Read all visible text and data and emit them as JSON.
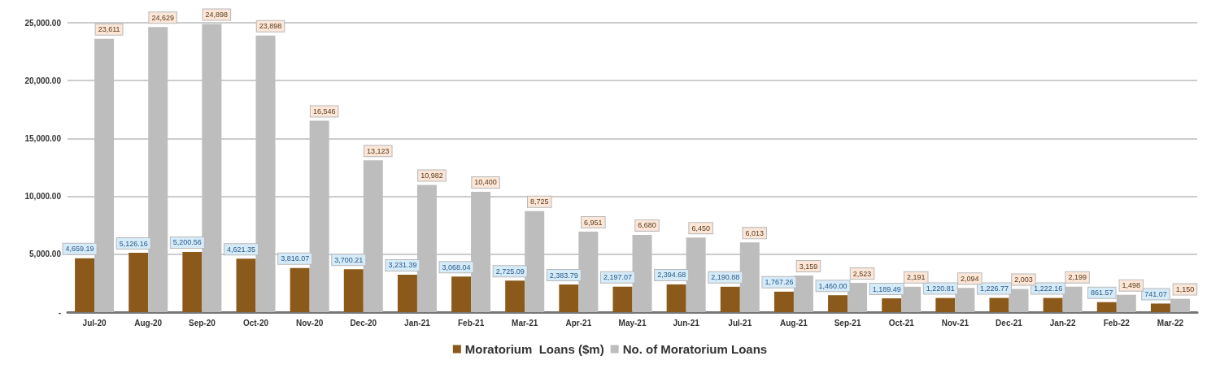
{
  "chart_data": {
    "type": "bar",
    "categories": [
      "Jul-20",
      "Aug-20",
      "Sep-20",
      "Oct-20",
      "Nov-20",
      "Dec-20",
      "Jan-21",
      "Feb-21",
      "Mar-21",
      "Apr-21",
      "May-21",
      "Jun-21",
      "Jul-21",
      "Aug-21",
      "Sep-21",
      "Oct-21",
      "Nov-21",
      "Dec-21",
      "Jan-22",
      "Feb-22",
      "Mar-22"
    ],
    "series": [
      {
        "name": "Moratorium  Loans ($m)",
        "color": "#8b5a1a",
        "values": [
          4659.19,
          5126.16,
          5200.56,
          4621.35,
          3816.07,
          3700.21,
          3231.39,
          3068.04,
          2725.09,
          2383.79,
          2197.07,
          2394.68,
          2190.88,
          1767.26,
          1460.0,
          1189.49,
          1220.81,
          1226.77,
          1222.16,
          861.57,
          741.07
        ],
        "value_labels": [
          "4,659.19",
          "5,126.16",
          "5,200.56",
          "4,621.35",
          "3,816.07",
          "3,700.21",
          "3,231.39",
          "3,068.04",
          "2,725.09",
          "2,383.79",
          "2,197.07",
          "2,394.68",
          "2,190.88",
          "1,767.26",
          "1,460.00",
          "1,189.49",
          "1,220.81",
          "1,226.77",
          "1,222.16",
          "861.57",
          "741.07"
        ]
      },
      {
        "name": "No. of Moratorium Loans",
        "color": "#bdbdbd",
        "values": [
          23611,
          24629,
          24898,
          23898,
          16546,
          13123,
          10982,
          10400,
          8725,
          6951,
          6680,
          6450,
          6013,
          3159,
          2523,
          2191,
          2094,
          2003,
          2199,
          1498,
          1150
        ],
        "value_labels": [
          "23,611",
          "24,629",
          "24,898",
          "23,898",
          "16,546",
          "13,123",
          "10,982",
          "10,400",
          "8,725",
          "6,951",
          "6,680",
          "6,450",
          "6,013",
          "3,159",
          "2,523",
          "2,191",
          "2,094",
          "2,003",
          "2,199",
          "1,498",
          "1,150"
        ]
      }
    ],
    "ylim": [
      0,
      25000
    ],
    "yticks": [
      {
        "value": 0,
        "label": "-"
      },
      {
        "value": 5000,
        "label": "5,000.00"
      },
      {
        "value": 10000,
        "label": "10,000.00"
      },
      {
        "value": 15000,
        "label": "15,000.00"
      },
      {
        "value": 20000,
        "label": "20,000.00"
      },
      {
        "value": 25000,
        "label": "25,000.00"
      }
    ],
    "grid": "y",
    "legend": "bottom"
  }
}
